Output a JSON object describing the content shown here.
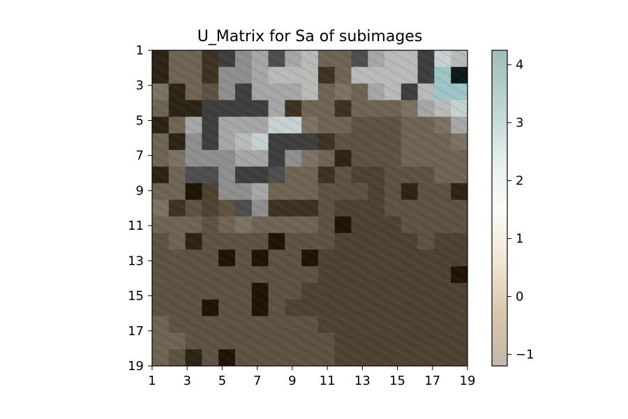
{
  "chart_data": {
    "type": "heatmap",
    "title": "U_Matrix for Sa of subimages",
    "xlabel": "",
    "ylabel": "",
    "x_ticks": [
      "1",
      "3",
      "5",
      "7",
      "9",
      "11",
      "13",
      "15",
      "17",
      "19"
    ],
    "y_ticks": [
      "1",
      "3",
      "5",
      "7",
      "9",
      "11",
      "13",
      "15",
      "17",
      "19"
    ],
    "grid_size": 19,
    "colorbar": {
      "range": [
        -1.2,
        4.25
      ],
      "ticks": [
        "4",
        "3",
        "2",
        "1",
        "0",
        "−1"
      ],
      "tick_values": [
        4,
        3,
        2,
        1,
        0,
        -1
      ],
      "stops": [
        {
          "v": -1.2,
          "color": "#c1b7aa"
        },
        {
          "v": -0.3,
          "color": "#d9c7ac"
        },
        {
          "v": 0.5,
          "color": "#efe3cf"
        },
        {
          "v": 1.5,
          "color": "#fcfaf6"
        },
        {
          "v": 2.2,
          "color": "#e9f3f1"
        },
        {
          "v": 3.0,
          "color": "#c7dcd9"
        },
        {
          "v": 4.25,
          "color": "#a2bcb9"
        }
      ]
    },
    "palette": {
      "-2": "#201408",
      "-1": "#2c2414",
      "0": "#3e3222",
      "1": "#4e4232",
      "2": "#5e5242",
      "3": "#6f6454",
      "4": "#7c7264",
      "5": "#3e3e3e",
      "6": "#4e4e4e",
      "7": "#8e8e8e",
      "8": "#a6a6a6",
      "9": "#b8baba",
      "10": "#c6d0d0",
      "11": "#9ec4c6",
      "12": "#0e1a1a"
    },
    "values": [
      [
        -1,
        3,
        3,
        0,
        5,
        7,
        8,
        6,
        8,
        9,
        3,
        3,
        6,
        8,
        9,
        9,
        5,
        10,
        9
      ],
      [
        -1,
        3,
        3,
        0,
        7,
        7,
        8,
        9,
        9,
        9,
        0,
        3,
        9,
        9,
        9,
        9,
        5,
        11,
        12
      ],
      [
        4,
        -1,
        3,
        2,
        7,
        5,
        8,
        8,
        8,
        9,
        3,
        4,
        3,
        8,
        9,
        5,
        9,
        11,
        11
      ],
      [
        3,
        -1,
        -1,
        5,
        5,
        5,
        5,
        8,
        0,
        3,
        3,
        0,
        3,
        3,
        3,
        4,
        8,
        9,
        10
      ],
      [
        -1,
        3,
        8,
        5,
        8,
        8,
        8,
        10,
        10,
        4,
        3,
        3,
        2,
        2,
        2,
        3,
        3,
        4,
        8
      ],
      [
        3,
        -1,
        7,
        5,
        8,
        9,
        10,
        5,
        5,
        5,
        0,
        2,
        2,
        2,
        2,
        3,
        3,
        3,
        4
      ],
      [
        3,
        4,
        7,
        7,
        7,
        8,
        8,
        5,
        7,
        4,
        3,
        -1,
        2,
        2,
        2,
        3,
        3,
        3,
        3
      ],
      [
        -1,
        3,
        6,
        6,
        7,
        5,
        5,
        6,
        3,
        3,
        0,
        2,
        1,
        1,
        2,
        2,
        2,
        3,
        3
      ],
      [
        3,
        3,
        -2,
        1,
        7,
        7,
        8,
        3,
        3,
        3,
        2,
        2,
        2,
        1,
        2,
        -1,
        2,
        2,
        -1
      ],
      [
        4,
        0,
        2,
        1,
        2,
        6,
        7,
        0,
        0,
        0,
        2,
        1,
        1,
        1,
        2,
        2,
        2,
        2,
        2
      ],
      [
        3,
        3,
        3,
        2,
        3,
        4,
        3,
        3,
        3,
        3,
        2,
        -2,
        1,
        1,
        1,
        2,
        2,
        2,
        2
      ],
      [
        2,
        3,
        -1,
        2,
        2,
        2,
        2,
        -2,
        2,
        2,
        2,
        1,
        1,
        1,
        1,
        1,
        2,
        1,
        1
      ],
      [
        2,
        2,
        2,
        2,
        -2,
        2,
        -2,
        2,
        2,
        -2,
        1,
        1,
        1,
        1,
        1,
        1,
        1,
        1,
        1
      ],
      [
        2,
        2,
        2,
        2,
        2,
        2,
        2,
        2,
        2,
        2,
        1,
        1,
        1,
        1,
        1,
        1,
        1,
        1,
        -2
      ],
      [
        2,
        2,
        2,
        2,
        2,
        2,
        -2,
        2,
        2,
        1,
        1,
        1,
        1,
        1,
        1,
        1,
        1,
        1,
        1
      ],
      [
        2,
        2,
        2,
        -2,
        2,
        2,
        -2,
        2,
        1,
        1,
        1,
        1,
        1,
        1,
        1,
        1,
        1,
        1,
        1
      ],
      [
        3,
        2,
        2,
        2,
        2,
        2,
        2,
        2,
        2,
        2,
        1,
        1,
        1,
        1,
        1,
        1,
        1,
        1,
        1
      ],
      [
        3,
        3,
        2,
        2,
        2,
        2,
        2,
        2,
        2,
        2,
        2,
        1,
        1,
        1,
        1,
        1,
        1,
        1,
        1
      ],
      [
        3,
        2,
        -1,
        2,
        -2,
        2,
        2,
        2,
        2,
        2,
        2,
        1,
        1,
        1,
        1,
        1,
        1,
        1,
        1
      ]
    ]
  }
}
